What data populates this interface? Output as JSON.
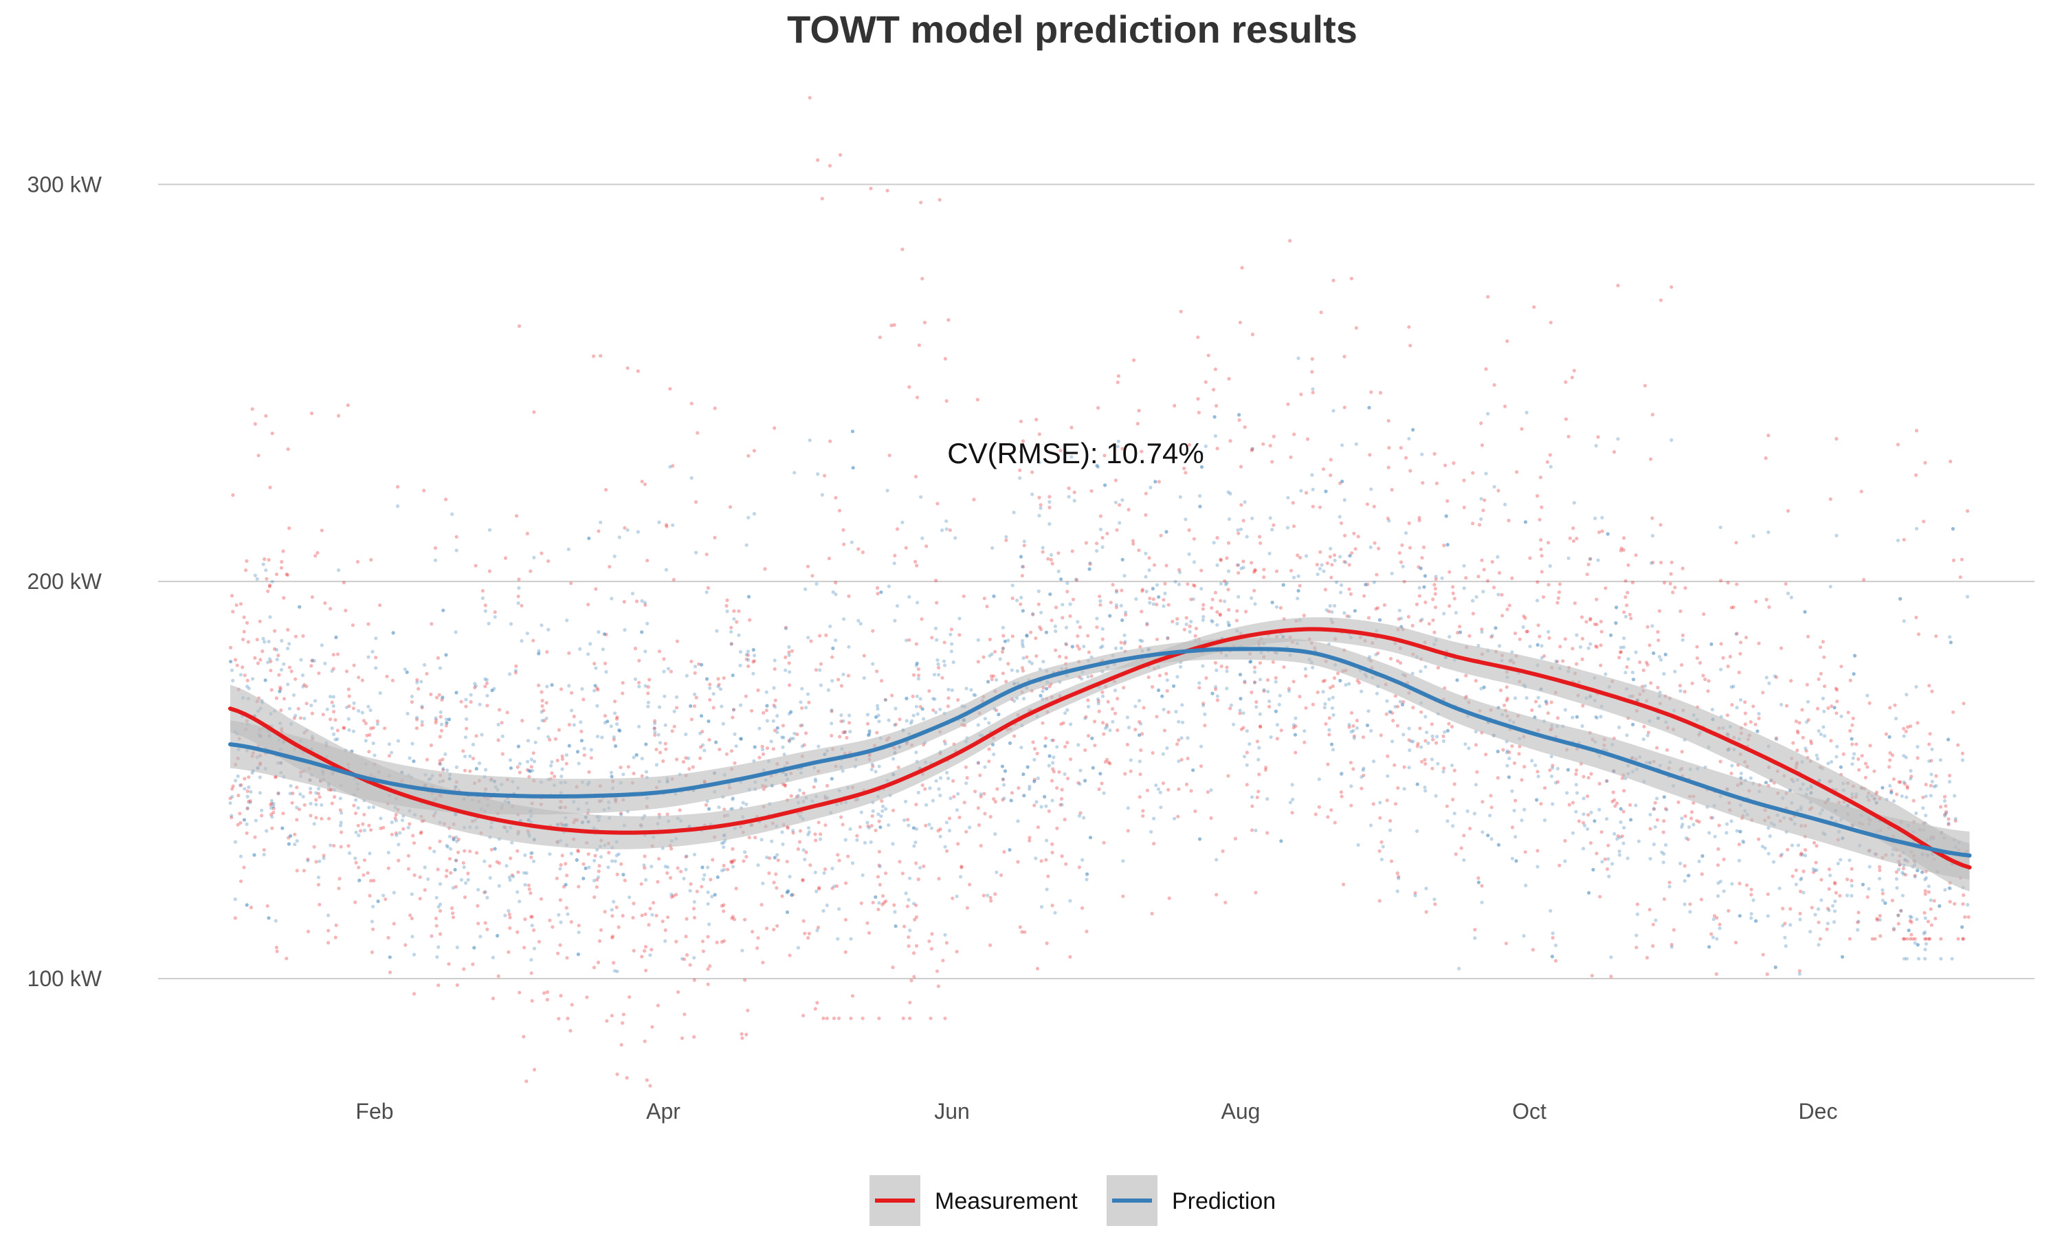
{
  "chart_data": {
    "type": "scatter",
    "title": "TOWT model prediction results",
    "annotation": "CV(RMSE): 10.74%",
    "xlabel": "",
    "ylabel": "",
    "x_tick_labels": [
      "Feb",
      "Apr",
      "Jun",
      "Aug",
      "Oct",
      "Dec"
    ],
    "x_tick_months": [
      2,
      4,
      6,
      8,
      10,
      12
    ],
    "y_ticks": [
      100,
      200,
      300
    ],
    "y_tick_labels": [
      "100 kW",
      "200 kW",
      "300 kW"
    ],
    "ylim": [
      73,
      330
    ],
    "xlim_months": [
      0.5,
      13.5
    ],
    "data_range_months": [
      1,
      13.05
    ],
    "grid": "horizontal major lines",
    "legend_position": "bottom",
    "colors": {
      "measurement": "#e41a1c",
      "prediction": "#377eb8",
      "ci_band": "#bbbbbb"
    },
    "series": [
      {
        "name": "Measurement",
        "color": "#e41a1c",
        "point_cloud": {
          "note": "hourly measurements, ranges per month",
          "monthly_ranges_kW": [
            [
              100,
              245
            ],
            [
              95,
              225
            ],
            [
              73,
              265
            ],
            [
              85,
              250
            ],
            [
              90,
              330
            ],
            [
              100,
              255
            ],
            [
              115,
              270
            ],
            [
              115,
              300
            ],
            [
              100,
              275
            ],
            [
              100,
              280
            ],
            [
              98,
              240
            ],
            [
              110,
              240
            ]
          ]
        },
        "trend_x_months": [
          1,
          1.5,
          2,
          2.5,
          3,
          3.5,
          4,
          4.5,
          5,
          5.5,
          6,
          6.5,
          7,
          7.5,
          8,
          8.5,
          9,
          9.5,
          10,
          10.5,
          11,
          11.5,
          12,
          12.5,
          13.05
        ],
        "trend_y_kW": [
          168,
          158,
          149,
          143,
          139,
          137,
          137,
          139,
          143,
          148,
          156,
          166,
          174,
          181,
          186,
          188,
          186,
          181,
          177,
          172,
          166,
          158,
          149,
          139,
          128
        ]
      },
      {
        "name": "Prediction",
        "color": "#377eb8",
        "point_cloud": {
          "note": "hourly model predictions, ranges per month",
          "monthly_ranges_kW": [
            [
              110,
              205
            ],
            [
              105,
              220
            ],
            [
              100,
              220
            ],
            [
              105,
              230
            ],
            [
              110,
              240
            ],
            [
              115,
              245
            ],
            [
              125,
              250
            ],
            [
              130,
              260
            ],
            [
              100,
              245
            ],
            [
              105,
              240
            ],
            [
              100,
              215
            ],
            [
              105,
              215
            ]
          ]
        },
        "trend_x_months": [
          1,
          1.5,
          2,
          2.5,
          3,
          3.5,
          4,
          4.5,
          5,
          5.5,
          6,
          6.5,
          7,
          7.5,
          8,
          8.5,
          9,
          9.5,
          10,
          10.5,
          11,
          11.5,
          12,
          12.5,
          13.05
        ],
        "trend_y_kW": [
          159,
          155,
          150,
          147,
          146,
          146,
          147,
          150,
          154,
          158,
          165,
          174,
          179,
          182,
          183,
          182,
          176,
          168,
          162,
          157,
          151,
          145,
          140,
          135,
          131
        ]
      }
    ]
  }
}
